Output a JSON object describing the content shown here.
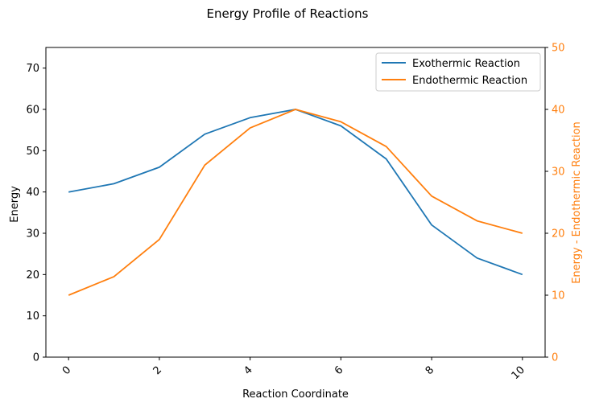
{
  "chart_data": {
    "type": "line",
    "title": "Energy Profile of Reactions",
    "xlabel": "Reaction Coordinate",
    "ylabel": "Energy",
    "y2label": "Energy - Endothermic Reaction",
    "xlim": [
      -0.5,
      10.5
    ],
    "ylim": [
      0,
      75
    ],
    "y2lim": [
      0,
      50
    ],
    "xticks": [
      0,
      2,
      4,
      6,
      8,
      10
    ],
    "yticks": [
      0,
      10,
      20,
      30,
      40,
      50,
      60,
      70
    ],
    "y2ticks": [
      0,
      10,
      20,
      30,
      40,
      50
    ],
    "x": [
      0,
      1,
      2,
      3,
      4,
      5,
      6,
      7,
      8,
      9,
      10
    ],
    "grid": false,
    "legend_position": "top-right",
    "series": [
      {
        "name": "Exothermic Reaction",
        "axis": "left",
        "color": "#1f77b4",
        "values": [
          40,
          42,
          46,
          54,
          58,
          60,
          56,
          48,
          32,
          24,
          20
        ]
      },
      {
        "name": "Endothermic Reaction",
        "axis": "right",
        "color": "#ff7f0e",
        "values": [
          10,
          13,
          19,
          31,
          37,
          40,
          38,
          34,
          26,
          22,
          20
        ]
      }
    ]
  }
}
